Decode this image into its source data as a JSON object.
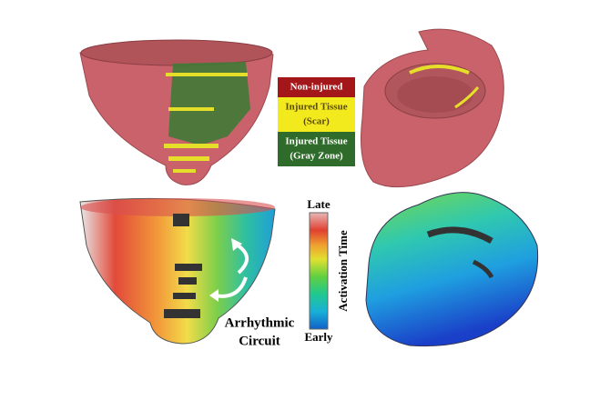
{
  "legend": {
    "items": [
      {
        "lines": [
          "Non-injured"
        ],
        "color": "#a3161a",
        "text_color": "#ffffff"
      },
      {
        "lines": [
          "Injured Tissue",
          "(Scar)"
        ],
        "color": "#f2ea1c",
        "text_color": "#5a4a10"
      },
      {
        "lines": [
          "Injured Tissue",
          "(Gray Zone)"
        ],
        "color": "#2f6b2a",
        "text_color": "#ffffff"
      }
    ]
  },
  "colorbar": {
    "top_label": "Late",
    "bottom_label": "Early",
    "title": "Activation Time"
  },
  "annotation": {
    "lines": [
      "Arrhythmic",
      "Circuit"
    ]
  }
}
